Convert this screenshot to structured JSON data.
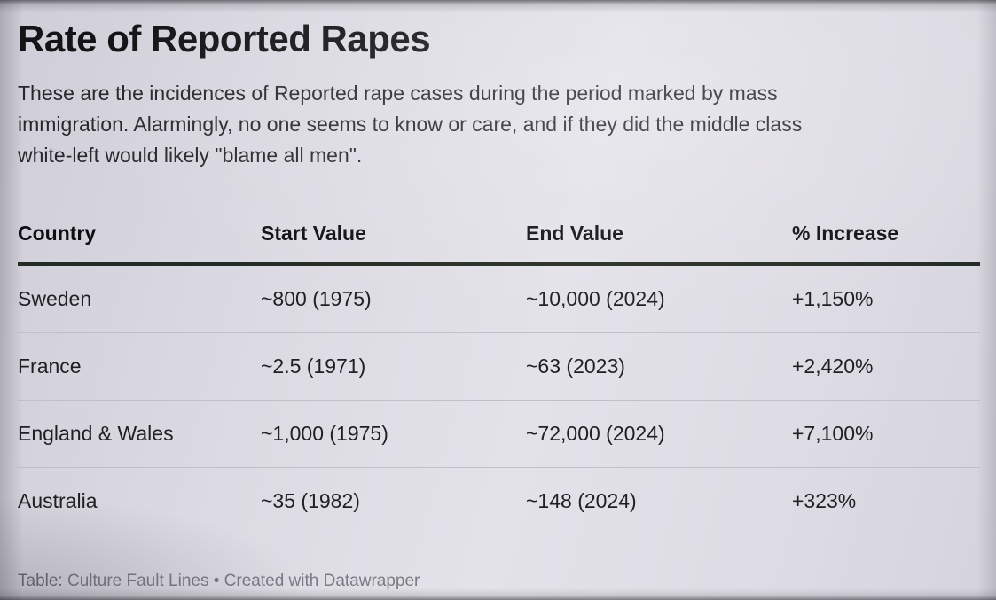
{
  "header": {
    "title": "Rate of Reported Rapes",
    "description_lines": [
      "These are the incidences of Reported rape cases during the period marked by mass",
      "immigration. Alarmingly, no one seems to know or care, and if they did the middle class",
      "white-left would likely \"blame all men\"."
    ]
  },
  "table": {
    "columns": [
      "Country",
      "Start Value",
      "End Value",
      "% Increase"
    ],
    "rows": [
      {
        "country": "Sweden",
        "start": "~800 (1975)",
        "end": "~10,000 (2024)",
        "increase": "+1,150%"
      },
      {
        "country": "France",
        "start": "~2.5 (1971)",
        "end": "~63 (2023)",
        "increase": "+2,420%"
      },
      {
        "country": "England & Wales",
        "start": "~1,000 (1975)",
        "end": "~72,000 (2024)",
        "increase": "+7,100%"
      },
      {
        "country": "Australia",
        "start": "~35 (1982)",
        "end": "~148 (2024)",
        "increase": "+323%"
      }
    ]
  },
  "footer": {
    "label": "Table:",
    "source": "Culture Fault Lines",
    "separator": "•",
    "attribution": "Created with Datawrapper"
  },
  "colors": {
    "background": "#dcdae2",
    "title_text": "#141417",
    "body_text": "#27272c",
    "header_rule": "#242a24",
    "row_divider": "#c1bfc8",
    "footer_text": "#7c7b84"
  },
  "chart_data": {
    "type": "table",
    "title": "Rate of Reported Rapes",
    "subtitle": "These are the incidences of Reported rape cases during the period marked by mass immigration. Alarmingly, no one seems to know or care, and if they did the middle class white-left would likely \"blame all men\".",
    "columns": [
      "Country",
      "Start Value",
      "End Value",
      "% Increase"
    ],
    "rows": [
      [
        "Sweden",
        "~800 (1975)",
        "~10,000 (2024)",
        "+1,150%"
      ],
      [
        "France",
        "~2.5 (1971)",
        "~63 (2023)",
        "+2,420%"
      ],
      [
        "England & Wales",
        "~1,000 (1975)",
        "~72,000 (2024)",
        "+7,100%"
      ],
      [
        "Australia",
        "~35 (1982)",
        "~148 (2024)",
        "+323%"
      ]
    ],
    "footer": "Table: Culture Fault Lines • Created with Datawrapper"
  }
}
